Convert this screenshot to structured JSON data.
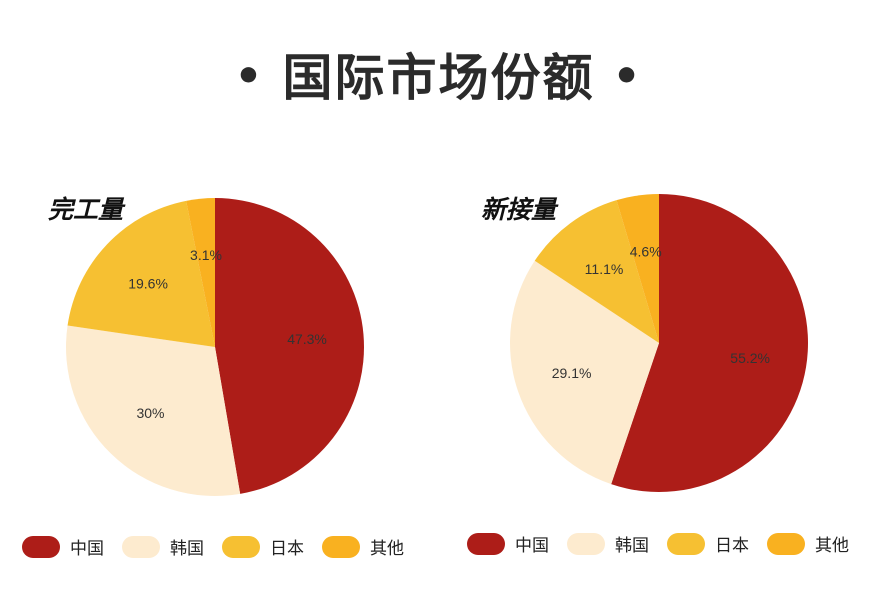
{
  "title": "国际市场份额",
  "title_bullet": "•",
  "colors": {
    "china": "#ad1d18",
    "korea": "#fdebcf",
    "japan": "#f6c032",
    "other": "#f9b120"
  },
  "chart_data": [
    {
      "type": "pie",
      "title": "完工量",
      "categories": [
        "中国",
        "韩国",
        "日本",
        "其他"
      ],
      "values": [
        47.3,
        30,
        19.6,
        3.1
      ],
      "labels": [
        "47.3%",
        "30%",
        "19.6%",
        "3.1%"
      ],
      "legend": "bottom"
    },
    {
      "type": "pie",
      "title": "新接量",
      "categories": [
        "中国",
        "韩国",
        "日本",
        "其他"
      ],
      "values": [
        55.2,
        29.1,
        11.1,
        4.6
      ],
      "labels": [
        "55.2%",
        "29.1%",
        "11.1%",
        "4.6%"
      ],
      "legend": "bottom"
    }
  ]
}
